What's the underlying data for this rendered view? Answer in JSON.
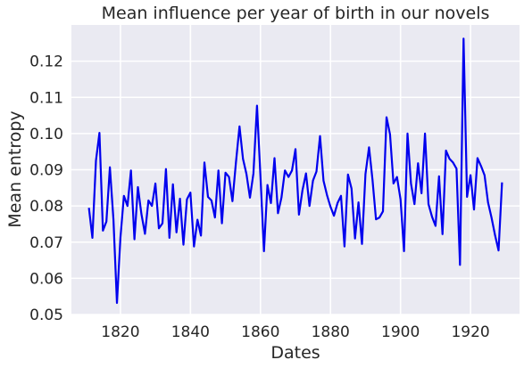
{
  "chart_data": {
    "type": "line",
    "title": "Mean influence per year of birth in our novels",
    "xlabel": "Dates",
    "ylabel": "Mean entropy",
    "xlim": [
      1806,
      1934
    ],
    "ylim": [
      0.05,
      0.13
    ],
    "xticks": [
      1820,
      1840,
      1860,
      1880,
      1900,
      1920
    ],
    "yticks": [
      0.05,
      0.06,
      0.07,
      0.08,
      0.09,
      0.1,
      0.11,
      0.12
    ],
    "ytick_labels": [
      "0.05",
      "0.06",
      "0.07",
      "0.08",
      "0.09",
      "0.10",
      "0.11",
      "0.12"
    ],
    "grid": true,
    "colors": {
      "line": "#0000ee",
      "background": "#eaeaf2",
      "grid": "#ffffff"
    },
    "series": [
      {
        "x": [
          1811,
          1812,
          1813,
          1814,
          1815,
          1816,
          1817,
          1818,
          1819,
          1820,
          1821,
          1822,
          1823,
          1824,
          1825,
          1826,
          1827,
          1828,
          1829,
          1830,
          1831,
          1832,
          1833,
          1834,
          1835,
          1836,
          1837,
          1838,
          1839,
          1840,
          1841,
          1842,
          1843,
          1844,
          1845,
          1846,
          1847,
          1848,
          1849,
          1850,
          1851,
          1852,
          1853,
          1854,
          1855,
          1856,
          1857,
          1858,
          1859,
          1860,
          1861,
          1862,
          1863,
          1864,
          1865,
          1866,
          1867,
          1868,
          1869,
          1870,
          1871,
          1872,
          1873,
          1874,
          1875,
          1876,
          1877,
          1878,
          1879,
          1880,
          1881,
          1882,
          1883,
          1884,
          1885,
          1886,
          1887,
          1888,
          1889,
          1890,
          1891,
          1892,
          1893,
          1894,
          1895,
          1896,
          1897,
          1898,
          1899,
          1900,
          1901,
          1902,
          1903,
          1904,
          1905,
          1906,
          1907,
          1908,
          1909,
          1910,
          1911,
          1912,
          1913,
          1914,
          1915,
          1916,
          1917,
          1918,
          1919,
          1920,
          1921,
          1922,
          1923,
          1924,
          1925,
          1926,
          1927,
          1928,
          1929
        ],
        "values": [
          0.0795,
          0.0712,
          0.0925,
          0.1002,
          0.0732,
          0.0757,
          0.0907,
          0.0762,
          0.0532,
          0.0712,
          0.0828,
          0.08,
          0.0898,
          0.0708,
          0.0852,
          0.0778,
          0.0723,
          0.0815,
          0.08,
          0.0862,
          0.0738,
          0.0752,
          0.0902,
          0.0712,
          0.086,
          0.0727,
          0.082,
          0.0693,
          0.0818,
          0.0837,
          0.0688,
          0.0762,
          0.0718,
          0.092,
          0.0825,
          0.0815,
          0.0768,
          0.0898,
          0.0752,
          0.0892,
          0.088,
          0.0813,
          0.092,
          0.102,
          0.093,
          0.0888,
          0.0823,
          0.089,
          0.1077,
          0.088,
          0.0675,
          0.0858,
          0.0808,
          0.0932,
          0.078,
          0.0823,
          0.0898,
          0.088,
          0.0898,
          0.0957,
          0.0776,
          0.0843,
          0.089,
          0.08,
          0.087,
          0.0895,
          0.0993,
          0.087,
          0.083,
          0.0798,
          0.0773,
          0.0808,
          0.0828,
          0.0688,
          0.0887,
          0.0848,
          0.071,
          0.081,
          0.0695,
          0.0888,
          0.0962,
          0.0872,
          0.0763,
          0.0768,
          0.0785,
          0.1045,
          0.0998,
          0.0862,
          0.088,
          0.0818,
          0.0675,
          0.1,
          0.0862,
          0.0805,
          0.0918,
          0.0835,
          0.1,
          0.0805,
          0.077,
          0.0745,
          0.0882,
          0.0722,
          0.0953,
          0.093,
          0.092,
          0.0903,
          0.0637,
          0.1262,
          0.0825,
          0.0885,
          0.079,
          0.0932,
          0.091,
          0.0885,
          0.081,
          0.0768,
          0.072,
          0.0677,
          0.0865
        ]
      }
    ]
  }
}
